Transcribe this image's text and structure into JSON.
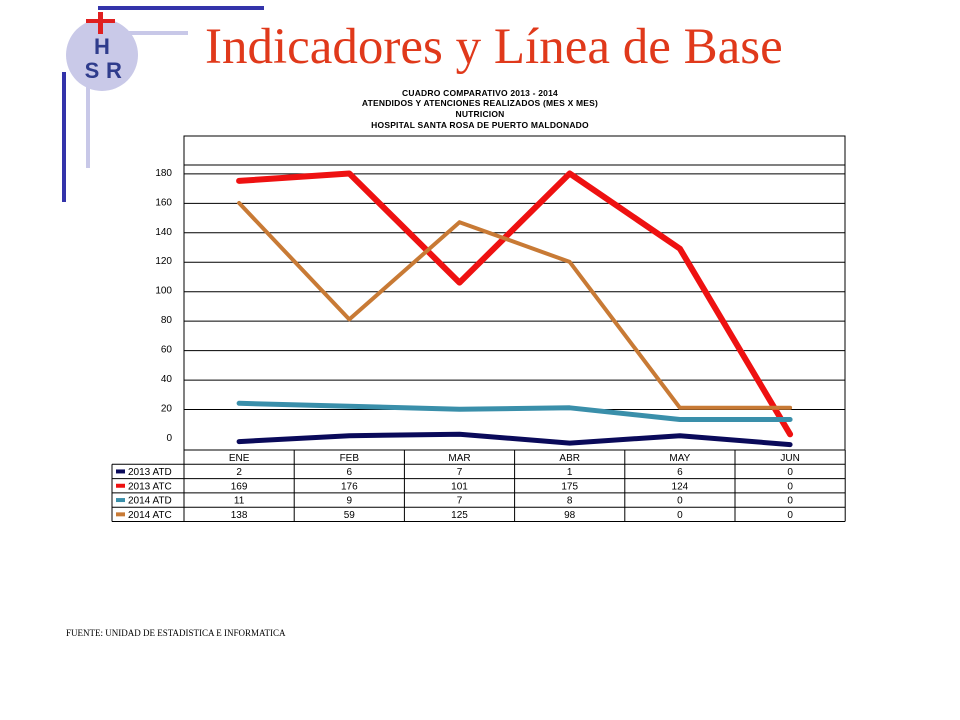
{
  "slide": {
    "title": "Indicadores y Línea de Base",
    "logo_text": [
      "H",
      "S",
      "R"
    ],
    "source": "FUENTE: UNIDAD DE ESTADISTICA E INFORMATICA"
  },
  "colors": {
    "title": "#e0391b",
    "logo_circle": "#c9c9e8",
    "logo_letters": "#2f3c8c",
    "logo_cross": "#e02020",
    "frame_dark": "#3333aa",
    "frame_light": "#c8c8e8"
  },
  "chart_data": {
    "type": "line",
    "title_lines": [
      "CUADRO COMPARATIVO 2013 - 2014",
      "ATENDIDOS Y ATENCIONES  REALIZADOS  (MES X MES)",
      "NUTRICION",
      "HOSPITAL  SANTA ROSA DE PUERTO MALDONADO"
    ],
    "categories": [
      "ENE",
      "FEB",
      "MAR",
      "ABR",
      "MAY",
      "JUN"
    ],
    "ylim": [
      0,
      180
    ],
    "yticks": [
      0,
      20,
      40,
      60,
      80,
      100,
      120,
      140,
      160,
      180
    ],
    "grid": true,
    "legend": "table-below",
    "series": [
      {
        "name": "2013 ATD",
        "color": "#0a0a5a",
        "values": [
          2,
          6,
          7,
          1,
          6,
          0
        ],
        "plotted": [
          5,
          9,
          10,
          4,
          9,
          3
        ]
      },
      {
        "name": "2013 ATC",
        "color": "#ee1111",
        "values": [
          169,
          176,
          101,
          175,
          124,
          0
        ],
        "plotted": [
          182,
          187,
          113,
          187,
          136,
          10
        ]
      },
      {
        "name": "2014 ATD",
        "color": "#3a8faa",
        "values": [
          11,
          9,
          7,
          8,
          0,
          0
        ],
        "plotted": [
          31,
          29,
          27,
          28,
          20,
          20
        ]
      },
      {
        "name": "2014 ATC",
        "color": "#c87a35",
        "values": [
          138,
          59,
          125,
          98,
          0,
          0
        ],
        "plotted": [
          167,
          88,
          154,
          127,
          28,
          28
        ]
      }
    ]
  }
}
